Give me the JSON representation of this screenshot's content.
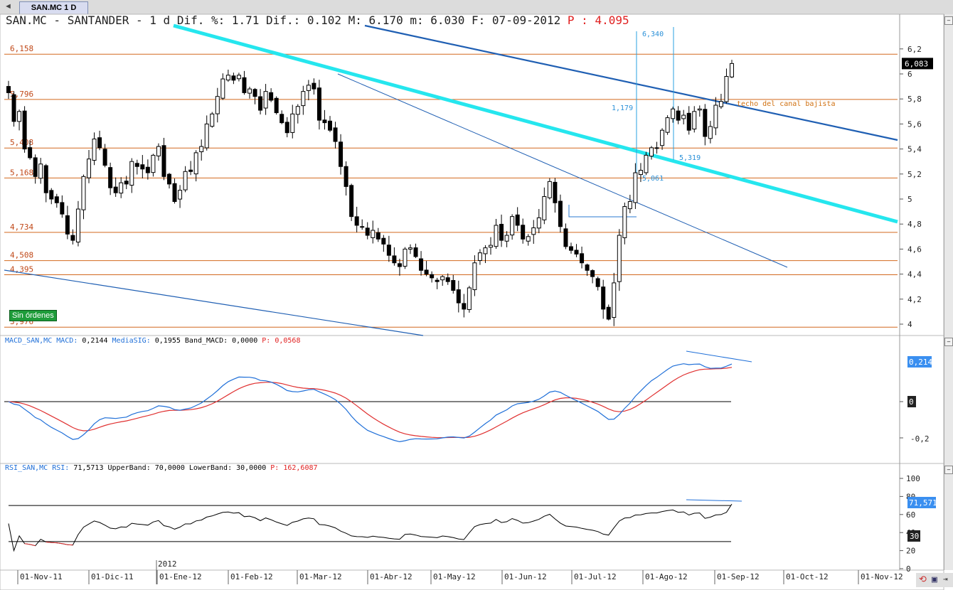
{
  "tab": {
    "label": "SAN.MC 1 D",
    "arrow": "◄"
  },
  "header": {
    "text": "SAN.MC - SANTANDER -  1 d Dif. %: 1.71 Dif.: 0.102 M: 6.170 m: 6.030 F: 07-09-2012",
    "price_label": "P : 4.095"
  },
  "status_badge": "Sin órdenes",
  "price_pane": {
    "last_value": "6,083",
    "hlines": [
      {
        "label": "6,158",
        "value": 6.158
      },
      {
        "label": "5,796",
        "value": 5.796
      },
      {
        "label": "5,408",
        "value": 5.408
      },
      {
        "label": "5,168",
        "value": 5.168
      },
      {
        "label": "4,734",
        "value": 4.734
      },
      {
        "label": "4,508",
        "value": 4.508
      },
      {
        "label": "4,395",
        "value": 4.395
      },
      {
        "label": "3,976",
        "value": 3.976
      }
    ],
    "annotations": {
      "target_high": "6,340",
      "target_low": "5,061",
      "range": "1,179",
      "break_level": "5,319",
      "channel_note": "techo del canal bajista"
    },
    "axis_ticks": [
      "6,2",
      "6",
      "5,8",
      "5,6",
      "5,4",
      "5,2",
      "5",
      "4,8",
      "4,6",
      "4,4",
      "4,2",
      "4"
    ]
  },
  "macd_pane": {
    "legend_name": "MACD_SAN,MC MACD:",
    "legend_value": " 0,2144",
    "legend_sig": " MediaSIG:",
    "legend_sig_value": " 0,1955",
    "legend_band": " Band_MACD: 0,0000",
    "legend_p": " P: 0,0568",
    "last_value": "0,214",
    "axis_ticks": [
      "0",
      "-0,2"
    ]
  },
  "rsi_pane": {
    "legend_name": "RSI_SAN,MC RSI:",
    "legend_value": " 71,5713",
    "legend_upper": " UpperBand: 70,0000",
    "legend_lower": " LowerBand: 30,0000",
    "legend_p": " P: 162,6087",
    "last_value": "71,571",
    "band_label": "30",
    "axis_ticks": [
      "100",
      "80",
      "60",
      "40",
      "20",
      "0"
    ]
  },
  "xaxis": {
    "year_label": "2012",
    "labels": [
      "01-Nov-11",
      "01-Dic-11",
      "01-Ene-12",
      "01-Feb-12",
      "01-Mar-12",
      "01-Abr-12",
      "01-May-12",
      "01-Jun-12",
      "01-Jul-12",
      "01-Ago-12",
      "01-Sep-12",
      "01-Oct-12",
      "01-Nov-12"
    ]
  },
  "colors": {
    "support": "#d2691e",
    "trend": "#1f5fb3",
    "channel": "#25e6ee",
    "macd": "#1f6fd8",
    "signal": "#e03030",
    "rsi": "#000000",
    "candle": "#000000"
  },
  "chart_data": {
    "type": "candlestick",
    "title": "SAN.MC - SANTANDER",
    "ylim": [
      3.95,
      6.3
    ],
    "closes": [
      5.85,
      5.62,
      5.7,
      5.4,
      5.33,
      5.18,
      5.28,
      5.05,
      5.0,
      4.97,
      4.88,
      4.72,
      4.67,
      4.92,
      5.18,
      5.32,
      5.48,
      5.41,
      5.27,
      5.09,
      5.05,
      5.13,
      5.12,
      5.3,
      5.26,
      5.24,
      5.21,
      5.35,
      5.42,
      5.18,
      5.12,
      4.98,
      5.07,
      5.22,
      5.22,
      5.37,
      5.42,
      5.6,
      5.68,
      5.82,
      5.96,
      5.99,
      5.95,
      5.99,
      5.85,
      5.88,
      5.82,
      5.71,
      5.86,
      5.79,
      5.69,
      5.61,
      5.53,
      5.68,
      5.74,
      5.86,
      5.91,
      5.88,
      5.63,
      5.61,
      5.55,
      5.46,
      5.26,
      5.1,
      4.86,
      4.79,
      4.78,
      4.71,
      4.75,
      4.68,
      4.64,
      4.55,
      4.49,
      4.46,
      4.6,
      4.61,
      4.54,
      4.43,
      4.4,
      4.37,
      4.34,
      4.38,
      4.34,
      4.27,
      4.17,
      4.12,
      4.29,
      4.49,
      4.57,
      4.61,
      4.63,
      4.79,
      4.67,
      4.71,
      4.86,
      4.79,
      4.68,
      4.7,
      4.77,
      4.85,
      5.02,
      5.14,
      4.97,
      4.78,
      4.62,
      4.59,
      4.56,
      4.49,
      4.43,
      4.38,
      4.3,
      4.12,
      4.04,
      4.33,
      4.71,
      4.94,
      4.98,
      5.21,
      5.23,
      5.35,
      5.41,
      5.41,
      5.55,
      5.65,
      5.72,
      5.63,
      5.67,
      5.55,
      5.7,
      5.72,
      5.5,
      5.58,
      5.75,
      5.78,
      5.98,
      6.083
    ],
    "x_labels": [
      "01-Nov-11",
      "01-Dic-11",
      "01-Ene-12",
      "01-Feb-12",
      "01-Mar-12",
      "01-Abr-12",
      "01-May-12",
      "01-Jun-12",
      "01-Jul-12",
      "01-Ago-12",
      "01-Sep-12",
      "01-Oct-12",
      "01-Nov-12"
    ],
    "macd": {
      "macd_last": 0.2144,
      "signal_last": 0.1955
    },
    "rsi": {
      "rsi_last": 71.5713,
      "upper": 70,
      "lower": 30
    }
  }
}
